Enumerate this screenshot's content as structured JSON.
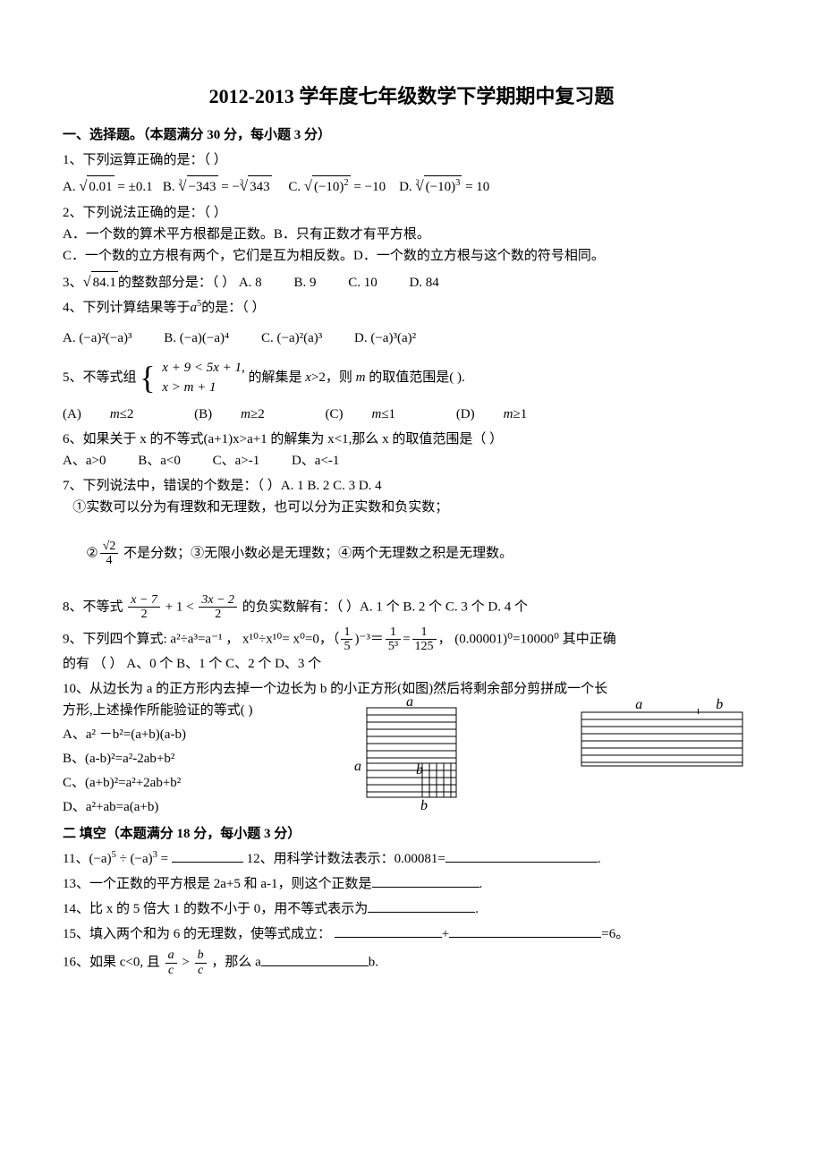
{
  "title": "2012-2013 学年度七年级数学下学期期中复习题",
  "section1_header": "一、选择题。（本题满分 30 分，每小题 3 分）",
  "q1": {
    "stem": "1、下列运算正确的是：（   ）",
    "A_pre": "A. ",
    "A_body1": "0.01",
    "A_body2": " = ±0.1",
    "B_pre": "B. ",
    "B_idx": "3",
    "B_body1": "−343",
    "B_mid": " = −",
    "B_body2": "343",
    "C_pre": "C. ",
    "C_body": "(−10)",
    "C_sup": "2",
    "C_eq": " = −10",
    "D_pre": "D. ",
    "D_idx": "3",
    "D_body": "(−10)",
    "D_sup": "3",
    "D_eq": " = 10"
  },
  "q2": {
    "stem": "2、下列说法正确的是：（    ）",
    "A": "A．一个数的算术平方根都是正数。",
    "B": "B．只有正数才有平方根。",
    "C": "C．一个数的立方根有两个，它们是互为相反数。",
    "D": "D．一个数的立方根与这个数的符号相同。"
  },
  "q3": {
    "pre": "3、",
    "body": "84.1",
    "post": "的整数部分是：（    ）",
    "A": "A. 8",
    "B": "B. 9",
    "C": "C. 10",
    "D": "D. 84"
  },
  "q4": {
    "stem_pre": "4、下列计算结果等于",
    "stem_mid": "a",
    "stem_sup": "5",
    "stem_post": "的是：（    ）",
    "A": "A. (−a)²(−a)³",
    "B": "B. (−a)(−a)⁴",
    "C": "C.  (−a)²(a)³",
    "D": "D.  (−a)³(a)²"
  },
  "q5": {
    "pre": "5、不等式组",
    "line1": "x + 9 < 5x + 1,",
    "line2": "x > m + 1",
    "post_a": "的解集是 ",
    "post_b": "x",
    "post_c": ">2，则 ",
    "post_d": "m",
    "post_e": " 的取值范围是(      ).",
    "A_pre": "(A)",
    "A_var": "m",
    "A_rest": "≤2",
    "B_pre": "(B)",
    "B_var": "m",
    "B_rest": "≥2",
    "C_pre": "(C)",
    "C_var": "m",
    "C_rest": "≤1",
    "D_pre": "(D)",
    "D_var": "m",
    "D_rest": "≥1"
  },
  "q6": {
    "stem": "6、如果关于 x 的不等式(a+1)x>a+1 的解集为 x<1,那么 x 的取值范围是（    ）",
    "A": "A、a>0",
    "B": "B、a<0",
    "C": "C、a>-1",
    "D": "D、a<-1"
  },
  "q7": {
    "stem": "7、下列说法中，错误的个数是：（   ）A. 1   B. 2    C. 3   D. 4",
    "i1": "   ①实数可以分为有理数和无理数，也可以分为正实数和负实数；",
    "i2_pre": "   ②",
    "i2_num": "√2",
    "i2_den": "4",
    "i2_post": " 不是分数；③无限小数必是无理数；④两个无理数之积是无理数。"
  },
  "q8": {
    "pre": "8、不等式",
    "n1": "x − 7",
    "d1": "2",
    "mid1": " + 1 < ",
    "n2": "3x − 2",
    "d2": "2",
    "post": " 的负实数解有：（  ）A. 1 个 B. 2 个  C. 3 个    D. 4 个"
  },
  "q9": {
    "line1_a": "9、下列四个算式: a²÷a³=a⁻¹ ，  x¹⁰÷x¹⁰= x⁰=0，（",
    "f1n": "1",
    "f1d": "5",
    "line1_b": ")⁻³＝",
    "f2n": "1",
    "f2d": "5³",
    "line1_c": "=",
    "f3n": "1",
    "f3d": "125",
    "line1_d": "，  (0.00001)⁰=10000⁰   其中正确",
    "line2": "的有 （       ）  A、0  个           B、1  个          C、2  个          D、3  个"
  },
  "q10": {
    "l1": "10、从边长为 a 的正方形内去掉一个边长为 b 的小正方形(如图)然后将剩余部分剪拼成一个长",
    "l2": "方形,上述操作所能验证的等式(          )",
    "A": "A、a²  －b²=(a+b)(a-b)",
    "B": "B、(a-b)²=a²-2ab+b²",
    "C": "C、(a+b)²=a²+2ab+b²",
    "D": "D、a²+ab=a(a+b)",
    "figure": {
      "label_a": "a",
      "label_b": "b",
      "stroke": "#000000",
      "hatch_gap": 8
    }
  },
  "section2_header": "二   填空（本题满分 18 分，每小题 3 分）",
  "q11_pre": "11、",
  "q11_expr_a": "(−a)",
  "q11_sup1": "5",
  "q11_mid": " ÷ ",
  "q11_expr_b": "(−a)",
  "q11_sup2": "3",
  "q11_eq": " =   ",
  "q12": "12、用科学计数法表示：0.00081=",
  "q12_end": ".",
  "q13": "13、一个正数的平方根是 2a+5 和 a-1，则这个正数是",
  "q13_end": ".",
  "q14": "14、比 x 的 5 倍大 1 的数不小于 0，用不等式表示为",
  "q14_end": ".",
  "q15_a": "15、填入两个和为 6 的无理数，使等式成立：  ",
  "q15_plus": "+",
  "q15_end": "=6。",
  "q16_a": "16、如果 c<0, 且",
  "q16_n1": "a",
  "q16_d1": "c",
  "q16_gt": " > ",
  "q16_n2": "b",
  "q16_d2": "c",
  "q16_b": " ，那么 a",
  "q16_end": "b."
}
